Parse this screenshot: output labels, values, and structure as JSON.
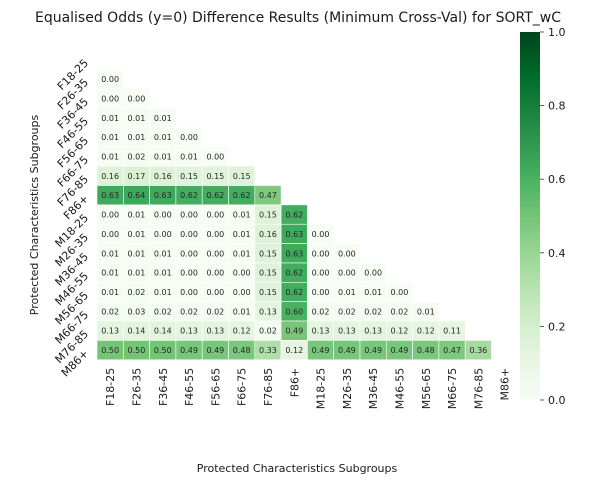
{
  "chart_data": {
    "type": "heatmap",
    "title": "Equalised Odds (y=0)  Difference Results (Minimum Cross-Val) for SORT_wC",
    "xlabel": "Protected Characteristics Subgroups",
    "ylabel": "Protected Characteristics Subgroups",
    "x_categories": [
      "F18-25",
      "F26-35",
      "F36-45",
      "F46-55",
      "F56-65",
      "F66-75",
      "F76-85",
      "F86+",
      "M18-25",
      "M26-35",
      "M36-45",
      "M46-55",
      "M56-65",
      "M66-75",
      "M76-85",
      "M86+"
    ],
    "y_categories": [
      "F18-25",
      "F26-35",
      "F36-45",
      "F46-55",
      "F56-65",
      "F66-75",
      "F76-85",
      "F86+",
      "M18-25",
      "M26-35",
      "M36-45",
      "M46-55",
      "M56-65",
      "M66-75",
      "M76-85",
      "M86+"
    ],
    "mask": "upper-triangle-including-diagonal",
    "values": [
      [],
      [
        0.0
      ],
      [
        0.0,
        0.0
      ],
      [
        0.01,
        0.01,
        0.01
      ],
      [
        0.01,
        0.01,
        0.01,
        0.0
      ],
      [
        0.01,
        0.02,
        0.01,
        0.01,
        0.0
      ],
      [
        0.16,
        0.17,
        0.16,
        0.15,
        0.15,
        0.15
      ],
      [
        0.63,
        0.64,
        0.63,
        0.62,
        0.62,
        0.62,
        0.47
      ],
      [
        0.0,
        0.01,
        0.0,
        0.0,
        0.0,
        0.01,
        0.15,
        0.62
      ],
      [
        0.0,
        0.01,
        0.0,
        0.0,
        0.0,
        0.01,
        0.16,
        0.63,
        0.0
      ],
      [
        0.01,
        0.01,
        0.01,
        0.0,
        0.0,
        0.01,
        0.15,
        0.63,
        0.0,
        0.0
      ],
      [
        0.01,
        0.01,
        0.01,
        0.0,
        0.0,
        0.0,
        0.15,
        0.62,
        0.0,
        0.0,
        0.0
      ],
      [
        0.01,
        0.02,
        0.01,
        0.0,
        0.0,
        0.0,
        0.15,
        0.62,
        0.0,
        0.01,
        0.01,
        0.0
      ],
      [
        0.02,
        0.03,
        0.02,
        0.02,
        0.02,
        0.01,
        0.13,
        0.6,
        0.02,
        0.02,
        0.02,
        0.02,
        0.01
      ],
      [
        0.13,
        0.14,
        0.14,
        0.13,
        0.13,
        0.12,
        0.02,
        0.49,
        0.13,
        0.13,
        0.13,
        0.12,
        0.12,
        0.11
      ],
      [
        0.5,
        0.5,
        0.5,
        0.49,
        0.49,
        0.48,
        0.33,
        0.12,
        0.49,
        0.49,
        0.49,
        0.49,
        0.48,
        0.47,
        0.36
      ]
    ],
    "value_format": "0.00",
    "colormap": "Greens",
    "color_low": "#f7fcf5",
    "color_high": "#00441b",
    "colorbar": {
      "range": [
        0.0,
        1.0
      ],
      "ticks": [
        "0.0",
        "0.2",
        "0.4",
        "0.6",
        "0.8",
        "1.0"
      ]
    },
    "grid": false
  }
}
